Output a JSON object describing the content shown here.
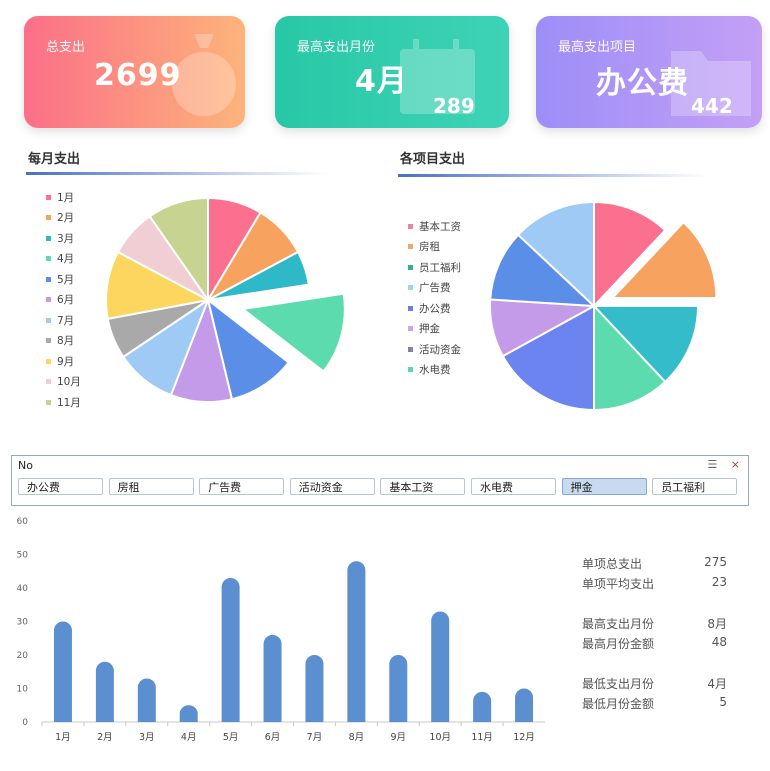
{
  "kpis": {
    "total": {
      "label": "总支出",
      "value": "2699"
    },
    "top_month": {
      "label": "最高支出月份",
      "value": "4月",
      "amount": "289"
    },
    "top_item": {
      "label": "最高支出项目",
      "value": "办公费",
      "amount": "442"
    }
  },
  "sections": {
    "monthly_title": "每月支出",
    "items_title": "各项目支出"
  },
  "monthly_pie": {
    "legend": [
      "1月",
      "2月",
      "3月",
      "4月",
      "5月",
      "6月",
      "7月",
      "8月",
      "9月",
      "10月",
      "11月"
    ],
    "colors": [
      "#fb6f8f",
      "#f8a25f",
      "#2fb8c8",
      "#5cdcae",
      "#5b8ee6",
      "#c39be8",
      "#9fcaf5",
      "#a9a9a9",
      "#fcd65e",
      "#f1cdd4",
      "#c6d391"
    ],
    "values": [
      8,
      8,
      5,
      12,
      10,
      9,
      9,
      6,
      10,
      7,
      9
    ],
    "explode_index": 3
  },
  "items_pie": {
    "legend": [
      "基本工资",
      "房租",
      "员工福利",
      "广告费",
      "办公费",
      "押金",
      "活动资金",
      "水电费"
    ],
    "legend_colors": [
      "#e5889b",
      "#f4a864",
      "#2fae9a",
      "#9ad9e8",
      "#6a7fd8",
      "#c6a8e6",
      "#7a86a0",
      "#5ed6b4"
    ],
    "slice_colors": [
      "#fb6f8f",
      "#f8a25f",
      "#34bccb",
      "#5cdcae",
      "#6b84f0",
      "#c39be8",
      "#5b8ee6",
      "#9fcaf5"
    ],
    "values": [
      12,
      13,
      13,
      12,
      17,
      9,
      11,
      13
    ],
    "explode_index": 1
  },
  "slicer": {
    "header": "No",
    "buttons": [
      "办公费",
      "房租",
      "广告费",
      "活动资金",
      "基本工资",
      "水电费",
      "押金",
      "员工福利"
    ],
    "selected": "押金"
  },
  "chart_data": {
    "type": "bar",
    "categories": [
      "1月",
      "2月",
      "3月",
      "4月",
      "5月",
      "6月",
      "7月",
      "8月",
      "9月",
      "10月",
      "11月",
      "12月"
    ],
    "values": [
      30,
      18,
      13,
      5,
      43,
      26,
      20,
      48,
      20,
      33,
      9,
      10
    ],
    "ylim": [
      0,
      60
    ],
    "yticks": [
      0,
      10,
      20,
      30,
      40,
      50,
      60
    ],
    "title": "",
    "xlabel": "",
    "ylabel": ""
  },
  "stats": {
    "single_total_label": "单项总支出",
    "single_total": "275",
    "single_avg_label": "单项平均支出",
    "single_avg": "23",
    "max_month_label": "最高支出月份",
    "max_month": "8月",
    "max_amount_label": "最高月份金额",
    "max_amount": "48",
    "min_month_label": "最低支出月份",
    "min_month": "4月",
    "min_amount_label": "最低月份金额",
    "min_amount": "5"
  }
}
